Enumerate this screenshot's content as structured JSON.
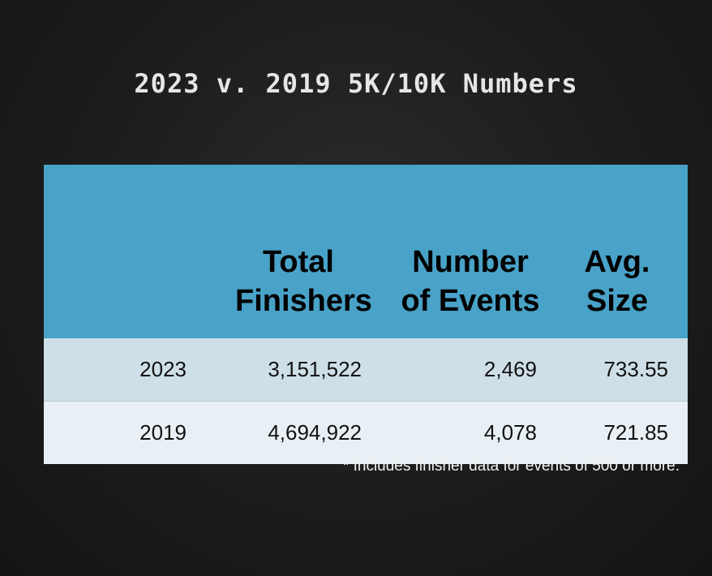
{
  "title": "2023 v. 2019 5K/10K Numbers",
  "table": {
    "headers": [
      "",
      "Total Finishers",
      "Number of Events",
      "Avg. Size"
    ],
    "rows": [
      [
        "2023",
        "3,151,522",
        "2,469",
        "733.55"
      ],
      [
        "2019",
        "4,694,922",
        "4,078",
        "721.85"
      ]
    ]
  },
  "footnote": "* Includes finisher data for events of 500 or more.",
  "colors": {
    "header_background": "#49a2c7",
    "row_2023_background": "#cfdfe7",
    "row_2019_background": "#e8f0f5",
    "slide_background": "#1f1f1f"
  }
}
